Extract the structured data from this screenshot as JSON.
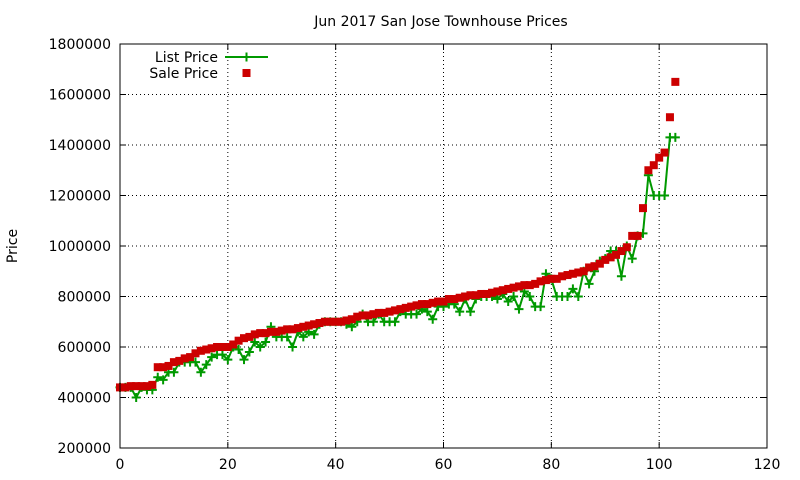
{
  "chart_data": {
    "type": "line",
    "title": "Jun 2017 San Jose Townhouse Prices",
    "xlabel": "",
    "ylabel": "Price",
    "xlim": [
      0,
      120
    ],
    "ylim": [
      200000,
      1800000
    ],
    "xticks": [
      "0",
      "20",
      "40",
      "60",
      "80",
      "100",
      "120"
    ],
    "yticks": [
      "200000",
      "400000",
      "600000",
      "800000",
      "1000000",
      "1200000",
      "1400000",
      "1600000",
      "1800000"
    ],
    "grid": true,
    "legend_position": "top-left",
    "series": [
      {
        "name": "List Price",
        "style": "line-plus",
        "color": "#009900",
        "x": [
          0,
          1,
          2,
          3,
          4,
          5,
          6,
          7,
          8,
          9,
          10,
          11,
          12,
          13,
          14,
          15,
          16,
          17,
          18,
          19,
          20,
          21,
          22,
          23,
          24,
          25,
          26,
          27,
          28,
          29,
          30,
          31,
          32,
          33,
          34,
          35,
          36,
          37,
          38,
          39,
          40,
          41,
          42,
          43,
          44,
          45,
          46,
          47,
          48,
          49,
          50,
          51,
          52,
          53,
          54,
          55,
          56,
          57,
          58,
          59,
          60,
          61,
          62,
          63,
          64,
          65,
          66,
          67,
          68,
          69,
          70,
          71,
          72,
          73,
          74,
          75,
          76,
          77,
          78,
          79,
          80,
          81,
          82,
          83,
          84,
          85,
          86,
          87,
          88,
          89,
          90,
          91,
          92,
          93,
          94,
          95,
          96,
          97,
          98,
          99,
          100,
          101,
          102,
          103
        ],
        "values": [
          440000,
          440000,
          440000,
          400000,
          440000,
          430000,
          430000,
          480000,
          470000,
          500000,
          500000,
          540000,
          540000,
          540000,
          540000,
          500000,
          530000,
          560000,
          570000,
          570000,
          550000,
          600000,
          590000,
          550000,
          580000,
          620000,
          600000,
          620000,
          680000,
          640000,
          640000,
          640000,
          600000,
          660000,
          640000,
          660000,
          650000,
          690000,
          700000,
          700000,
          700000,
          700000,
          690000,
          680000,
          700000,
          730000,
          700000,
          700000,
          730000,
          700000,
          700000,
          700000,
          740000,
          730000,
          730000,
          730000,
          750000,
          740000,
          710000,
          760000,
          760000,
          770000,
          770000,
          740000,
          790000,
          740000,
          790000,
          800000,
          800000,
          800000,
          790000,
          810000,
          780000,
          800000,
          750000,
          820000,
          800000,
          760000,
          760000,
          890000,
          870000,
          800000,
          800000,
          800000,
          830000,
          800000,
          900000,
          850000,
          900000,
          940000,
          950000,
          980000,
          980000,
          880000,
          1000000,
          950000,
          1040000,
          1050000,
          1280000,
          1200000,
          1200000,
          1200000,
          1430000,
          1430000
        ]
      },
      {
        "name": "Sale Price",
        "style": "square",
        "color": "#cc0000",
        "x": [
          0,
          1,
          2,
          3,
          4,
          5,
          6,
          7,
          8,
          9,
          10,
          11,
          12,
          13,
          14,
          15,
          16,
          17,
          18,
          19,
          20,
          21,
          22,
          23,
          24,
          25,
          26,
          27,
          28,
          29,
          30,
          31,
          32,
          33,
          34,
          35,
          36,
          37,
          38,
          39,
          40,
          41,
          42,
          43,
          44,
          45,
          46,
          47,
          48,
          49,
          50,
          51,
          52,
          53,
          54,
          55,
          56,
          57,
          58,
          59,
          60,
          61,
          62,
          63,
          64,
          65,
          66,
          67,
          68,
          69,
          70,
          71,
          72,
          73,
          74,
          75,
          76,
          77,
          78,
          79,
          80,
          81,
          82,
          83,
          84,
          85,
          86,
          87,
          88,
          89,
          90,
          91,
          92,
          93,
          94,
          95,
          96,
          97,
          98,
          99,
          100,
          101,
          102,
          103
        ],
        "values": [
          440000,
          440000,
          445000,
          445000,
          445000,
          445000,
          450000,
          520000,
          520000,
          525000,
          540000,
          545000,
          555000,
          560000,
          575000,
          585000,
          590000,
          595000,
          600000,
          600000,
          600000,
          610000,
          625000,
          635000,
          640000,
          650000,
          655000,
          655000,
          660000,
          660000,
          665000,
          670000,
          670000,
          675000,
          680000,
          685000,
          690000,
          695000,
          700000,
          700000,
          700000,
          700000,
          705000,
          710000,
          720000,
          725000,
          725000,
          730000,
          735000,
          735000,
          740000,
          745000,
          750000,
          755000,
          760000,
          765000,
          770000,
          770000,
          775000,
          780000,
          780000,
          790000,
          790000,
          795000,
          800000,
          805000,
          805000,
          810000,
          810000,
          815000,
          820000,
          825000,
          830000,
          835000,
          840000,
          845000,
          845000,
          850000,
          860000,
          865000,
          870000,
          870000,
          880000,
          885000,
          890000,
          895000,
          900000,
          915000,
          920000,
          930000,
          945000,
          955000,
          965000,
          980000,
          995000,
          1040000,
          1040000,
          1150000,
          1300000,
          1320000,
          1350000,
          1370000,
          1510000,
          1650000
        ]
      }
    ]
  }
}
